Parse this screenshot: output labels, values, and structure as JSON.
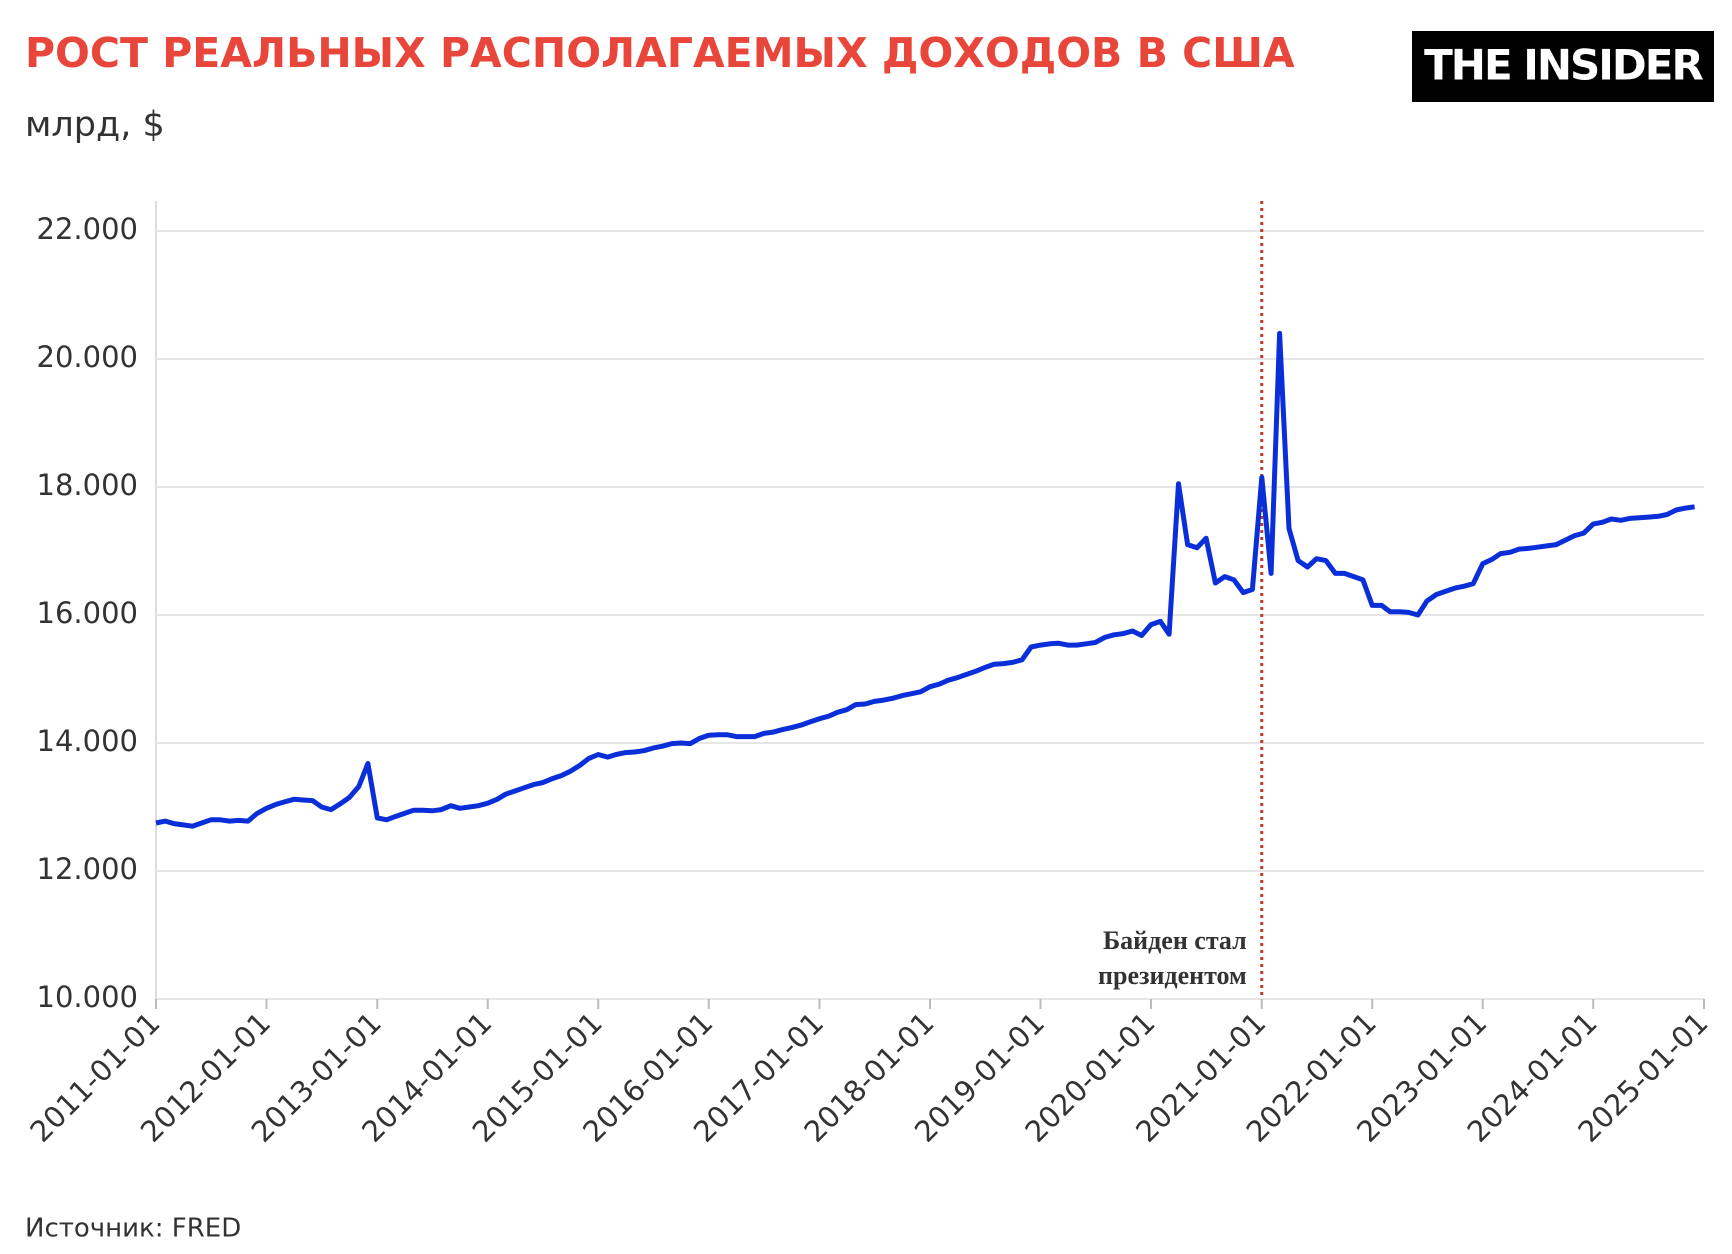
{
  "logo": "THE INSIDER",
  "source": "Источник: FRED",
  "chart_data": {
    "type": "line",
    "title": "РОСТ РЕАЛЬНЫХ РАСПОЛАГАЕМЫХ ДОХОДОВ В США",
    "subtitle": "млрд, $",
    "color": "#0a2fd8",
    "x": [
      "2011-01-01",
      "2011-02-01",
      "2011-03-01",
      "2011-04-01",
      "2011-05-01",
      "2011-06-01",
      "2011-07-01",
      "2011-08-01",
      "2011-09-01",
      "2011-10-01",
      "2011-11-01",
      "2011-12-01",
      "2012-01-01",
      "2012-02-01",
      "2012-03-01",
      "2012-04-01",
      "2012-05-01",
      "2012-06-01",
      "2012-07-01",
      "2012-08-01",
      "2012-09-01",
      "2012-10-01",
      "2012-11-01",
      "2012-12-01",
      "2013-01-01",
      "2013-02-01",
      "2013-03-01",
      "2013-04-01",
      "2013-05-01",
      "2013-06-01",
      "2013-07-01",
      "2013-08-01",
      "2013-09-01",
      "2013-10-01",
      "2013-11-01",
      "2013-12-01",
      "2014-01-01",
      "2014-02-01",
      "2014-03-01",
      "2014-04-01",
      "2014-05-01",
      "2014-06-01",
      "2014-07-01",
      "2014-08-01",
      "2014-09-01",
      "2014-10-01",
      "2014-11-01",
      "2014-12-01",
      "2015-01-01",
      "2015-02-01",
      "2015-03-01",
      "2015-04-01",
      "2015-05-01",
      "2015-06-01",
      "2015-07-01",
      "2015-08-01",
      "2015-09-01",
      "2015-10-01",
      "2015-11-01",
      "2015-12-01",
      "2016-01-01",
      "2016-02-01",
      "2016-03-01",
      "2016-04-01",
      "2016-05-01",
      "2016-06-01",
      "2016-07-01",
      "2016-08-01",
      "2016-09-01",
      "2016-10-01",
      "2016-11-01",
      "2016-12-01",
      "2017-01-01",
      "2017-02-01",
      "2017-03-01",
      "2017-04-01",
      "2017-05-01",
      "2017-06-01",
      "2017-07-01",
      "2017-08-01",
      "2017-09-01",
      "2017-10-01",
      "2017-11-01",
      "2017-12-01",
      "2018-01-01",
      "2018-02-01",
      "2018-03-01",
      "2018-04-01",
      "2018-05-01",
      "2018-06-01",
      "2018-07-01",
      "2018-08-01",
      "2018-09-01",
      "2018-10-01",
      "2018-11-01",
      "2018-12-01",
      "2019-01-01",
      "2019-02-01",
      "2019-03-01",
      "2019-04-01",
      "2019-05-01",
      "2019-06-01",
      "2019-07-01",
      "2019-08-01",
      "2019-09-01",
      "2019-10-01",
      "2019-11-01",
      "2019-12-01",
      "2020-01-01",
      "2020-02-01",
      "2020-03-01",
      "2020-04-01",
      "2020-05-01",
      "2020-06-01",
      "2020-07-01",
      "2020-08-01",
      "2020-09-01",
      "2020-10-01",
      "2020-11-01",
      "2020-12-01",
      "2021-01-01",
      "2021-02-01",
      "2021-03-01",
      "2021-04-01",
      "2021-05-01",
      "2021-06-01",
      "2021-07-01",
      "2021-08-01",
      "2021-09-01",
      "2021-10-01",
      "2021-11-01",
      "2021-12-01",
      "2022-01-01",
      "2022-02-01",
      "2022-03-01",
      "2022-04-01",
      "2022-05-01",
      "2022-06-01",
      "2022-07-01",
      "2022-08-01",
      "2022-09-01",
      "2022-10-01",
      "2022-11-01",
      "2022-12-01",
      "2023-01-01",
      "2023-02-01",
      "2023-03-01",
      "2023-04-01",
      "2023-05-01",
      "2023-06-01",
      "2023-07-01",
      "2023-08-01",
      "2023-09-01",
      "2023-10-01",
      "2023-11-01",
      "2023-12-01",
      "2024-01-01",
      "2024-02-01",
      "2024-03-01",
      "2024-04-01",
      "2024-05-01",
      "2024-06-01",
      "2024-07-01",
      "2024-08-01",
      "2024-09-01",
      "2024-10-01",
      "2024-11-01",
      "2024-12-01"
    ],
    "values": [
      12750,
      12780,
      12740,
      12720,
      12700,
      12750,
      12800,
      12800,
      12780,
      12790,
      12780,
      12900,
      12980,
      13040,
      13080,
      13120,
      13110,
      13100,
      13000,
      12960,
      13050,
      13150,
      13320,
      13680,
      12830,
      12800,
      12850,
      12900,
      12950,
      12950,
      12940,
      12960,
      13020,
      12980,
      13000,
      13020,
      13060,
      13120,
      13200,
      13250,
      13300,
      13350,
      13380,
      13440,
      13490,
      13560,
      13650,
      13760,
      13820,
      13780,
      13820,
      13850,
      13860,
      13880,
      13920,
      13950,
      13990,
      14000,
      13990,
      14070,
      14120,
      14130,
      14130,
      14100,
      14100,
      14100,
      14150,
      14170,
      14210,
      14240,
      14280,
      14330,
      14380,
      14420,
      14480,
      14520,
      14600,
      14610,
      14650,
      14670,
      14700,
      14740,
      14770,
      14800,
      14880,
      14920,
      14980,
      15020,
      15070,
      15120,
      15180,
      15230,
      15240,
      15260,
      15300,
      15500,
      15530,
      15550,
      15560,
      15530,
      15530,
      15550,
      15570,
      15650,
      15690,
      15710,
      15750,
      15680,
      15850,
      15900,
      15700,
      18050,
      17100,
      17050,
      17200,
      16500,
      16600,
      16550,
      16350,
      16400,
      18150,
      16650,
      20400,
      17350,
      16850,
      16750,
      16880,
      16850,
      16650,
      16650,
      16600,
      16550,
      16150,
      16150,
      16050,
      16050,
      16040,
      16000,
      16220,
      16320,
      16370,
      16420,
      16450,
      16490,
      16800,
      16870,
      16960,
      16980,
      17030,
      17040,
      17060,
      17080,
      17100,
      17170,
      17240,
      17280,
      17420,
      17450,
      17500,
      17480,
      17510,
      17520,
      17530,
      17540,
      17570,
      17640,
      17670,
      17690
    ],
    "xlim": [
      "2011-01-01",
      "2025-01-01"
    ],
    "xticks": [
      "2011-01-01",
      "2012-01-01",
      "2013-01-01",
      "2014-01-01",
      "2015-01-01",
      "2016-01-01",
      "2017-01-01",
      "2018-01-01",
      "2019-01-01",
      "2020-01-01",
      "2021-01-01",
      "2022-01-01",
      "2023-01-01",
      "2024-01-01",
      "2025-01-01"
    ],
    "ylim": [
      10000,
      22000
    ],
    "yticks": [
      {
        "value": 10000,
        "label": "10.000"
      },
      {
        "value": 12000,
        "label": "12.000"
      },
      {
        "value": 14000,
        "label": "14.000"
      },
      {
        "value": 16000,
        "label": "16.000"
      },
      {
        "value": 18000,
        "label": "18.000"
      },
      {
        "value": 20000,
        "label": "20.000"
      },
      {
        "value": 22000,
        "label": "22.000"
      }
    ],
    "grid": true,
    "annotation": {
      "x": "2021-01-01",
      "color": "#c0392b",
      "lines": [
        "Байден стал",
        "президентом"
      ]
    }
  }
}
